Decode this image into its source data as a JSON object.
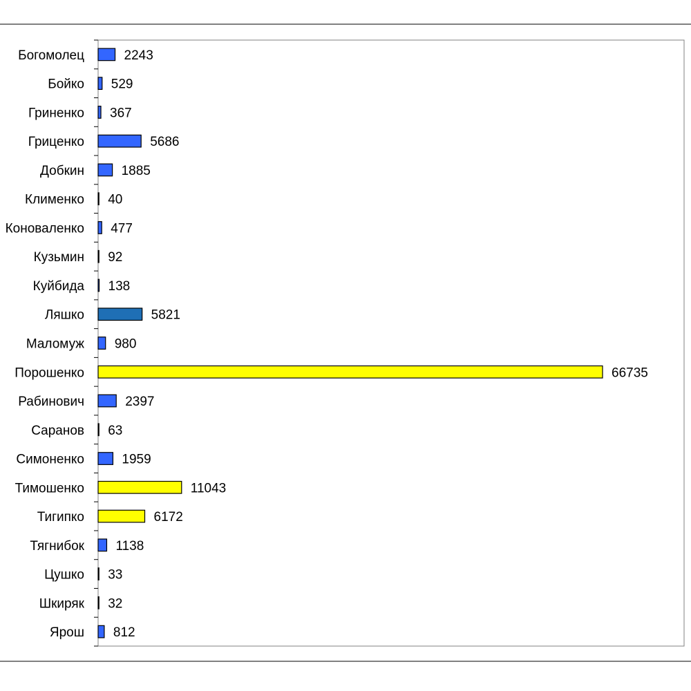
{
  "chart_data": {
    "type": "bar",
    "orientation": "horizontal",
    "categories": [
      "Богомолец",
      "Бойко",
      "Гриненко",
      "Гриценко",
      "Добкин",
      "Клименко",
      "Коноваленко",
      "Кузьмин",
      "Куйбида",
      "Ляшко",
      "Маломуж",
      "Порошенко",
      "Рабинович",
      "Саранов",
      "Симоненко",
      "Тимошенко",
      "Тигипко",
      "Тягнибок",
      "Цушко",
      "Шкиряк",
      "Ярош"
    ],
    "values": [
      2243,
      529,
      367,
      5686,
      1885,
      40,
      477,
      92,
      138,
      5821,
      980,
      66735,
      2397,
      63,
      1959,
      11043,
      6172,
      1138,
      33,
      32,
      812
    ],
    "value_labels": [
      "2243",
      "529",
      "367",
      "5686",
      "1885",
      "40",
      "477",
      "92",
      "138",
      "5821",
      "980",
      "66735",
      "2397",
      "63",
      "1959",
      "11043",
      "6172",
      "1138",
      "33",
      "32",
      "812"
    ],
    "bar_colors": [
      "#3366ff",
      "#3366ff",
      "#3366ff",
      "#3366ff",
      "#3366ff",
      "#3366ff",
      "#3366ff",
      "#3366ff",
      "#3366ff",
      "#1f6fb5",
      "#3366ff",
      "#ffff00",
      "#3366ff",
      "#3366ff",
      "#3366ff",
      "#ffff00",
      "#ffff00",
      "#3366ff",
      "#3366ff",
      "#3366ff",
      "#3366ff"
    ],
    "xlim": [
      0,
      72000
    ],
    "grid": false,
    "title": "",
    "xlabel": "",
    "ylabel": ""
  }
}
